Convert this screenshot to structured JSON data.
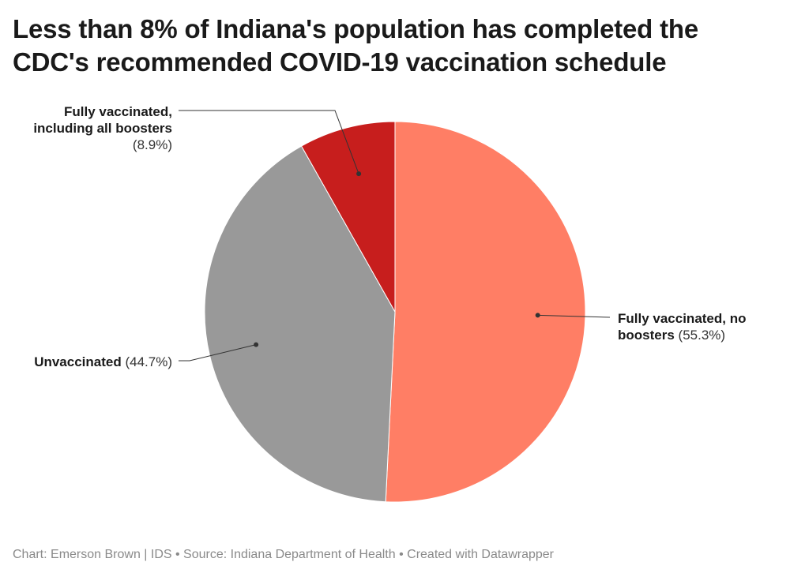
{
  "title_line1": "Less than 8% of Indiana's population has completed the",
  "title_line2": "CDC's recommended COVID-19 vaccination schedule",
  "chart_data": {
    "type": "pie",
    "title": "Less than 8% of Indiana's population has completed the CDC's recommended COVID-19 vaccination schedule",
    "slices": [
      {
        "label": "Fully vaccinated, no boosters",
        "value": 55.3,
        "value_text": "(55.3%)",
        "color": "#FF7E65"
      },
      {
        "label": "Unvaccinated",
        "value": 44.7,
        "value_text": "(44.7%)",
        "color": "#999999"
      },
      {
        "label": "Fully vaccinated, including all boosters",
        "value": 8.9,
        "value_text": "(8.9%)",
        "color": "#C71E1D"
      }
    ]
  },
  "labels": {
    "boosters_line1": "Fully vaccinated,",
    "boosters_line2": "including all boosters",
    "boosters_pct": "(8.9%)",
    "nobooster_line1": "Fully vaccinated, no",
    "nobooster_line2": "boosters",
    "nobooster_pct": "(55.3%)",
    "unvacc_name": "Unvaccinated",
    "unvacc_pct": "(44.7%)"
  },
  "footer": "Chart: Emerson Brown | IDS • Source: Indiana Department of Health • Created with Datawrapper"
}
